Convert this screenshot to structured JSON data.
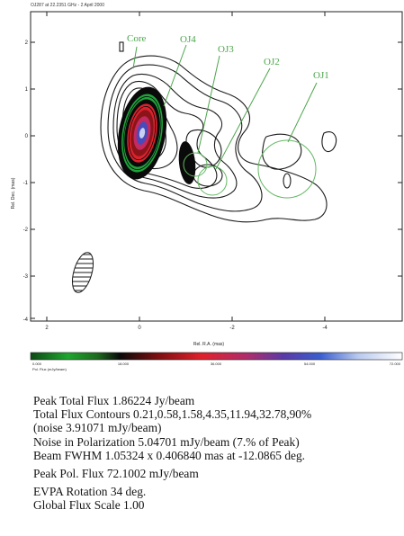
{
  "figure": {
    "title": "OJ287 at 22.2351 GHz - 2 April 2000",
    "y_axis_label": "Rel. Dec. (mas)",
    "x_axis_label": "Rel. R.A. (mas)",
    "y_ticks": [
      "2",
      "1",
      "0",
      "-1",
      "-2",
      "-3",
      "-4"
    ],
    "x_ticks": [
      "2",
      "0",
      "-2",
      "-4"
    ],
    "component_labels": [
      "Core",
      "OJ4",
      "OJ3",
      "OJ2",
      "OJ1"
    ],
    "colorbar_ticks": [
      "0.000",
      "18.000",
      "36.000",
      "54.000",
      "72.000"
    ],
    "colorbar_label": "Pol. Flux (mJy/beam)",
    "colors": {
      "contour": "#1a1a1a",
      "label_green": "#4ca64c",
      "component_circle": "#63b863"
    }
  },
  "caption": {
    "peak_total_flux": "Peak Total Flux 1.86224 Jy/beam",
    "total_flux_contours": "Total Flux Contours 0.21,0.58,1.58,4.35,11.94,32.78,90%",
    "noise": "(noise 3.91071 mJy/beam)",
    "noise_pol": "Noise in Polarization 5.04701 mJy/beam (7.% of Peak)",
    "beam_fwhm": "Beam FWHM 1.05324 x 0.406840 mas at -12.0865 deg.",
    "peak_pol_flux": "Peak Pol. Flux 72.1002 mJy/beam",
    "evpa_rotation": "EVPA Rotation 34 deg.",
    "global_flux_scale": "Global Flux Scale 1.00"
  }
}
